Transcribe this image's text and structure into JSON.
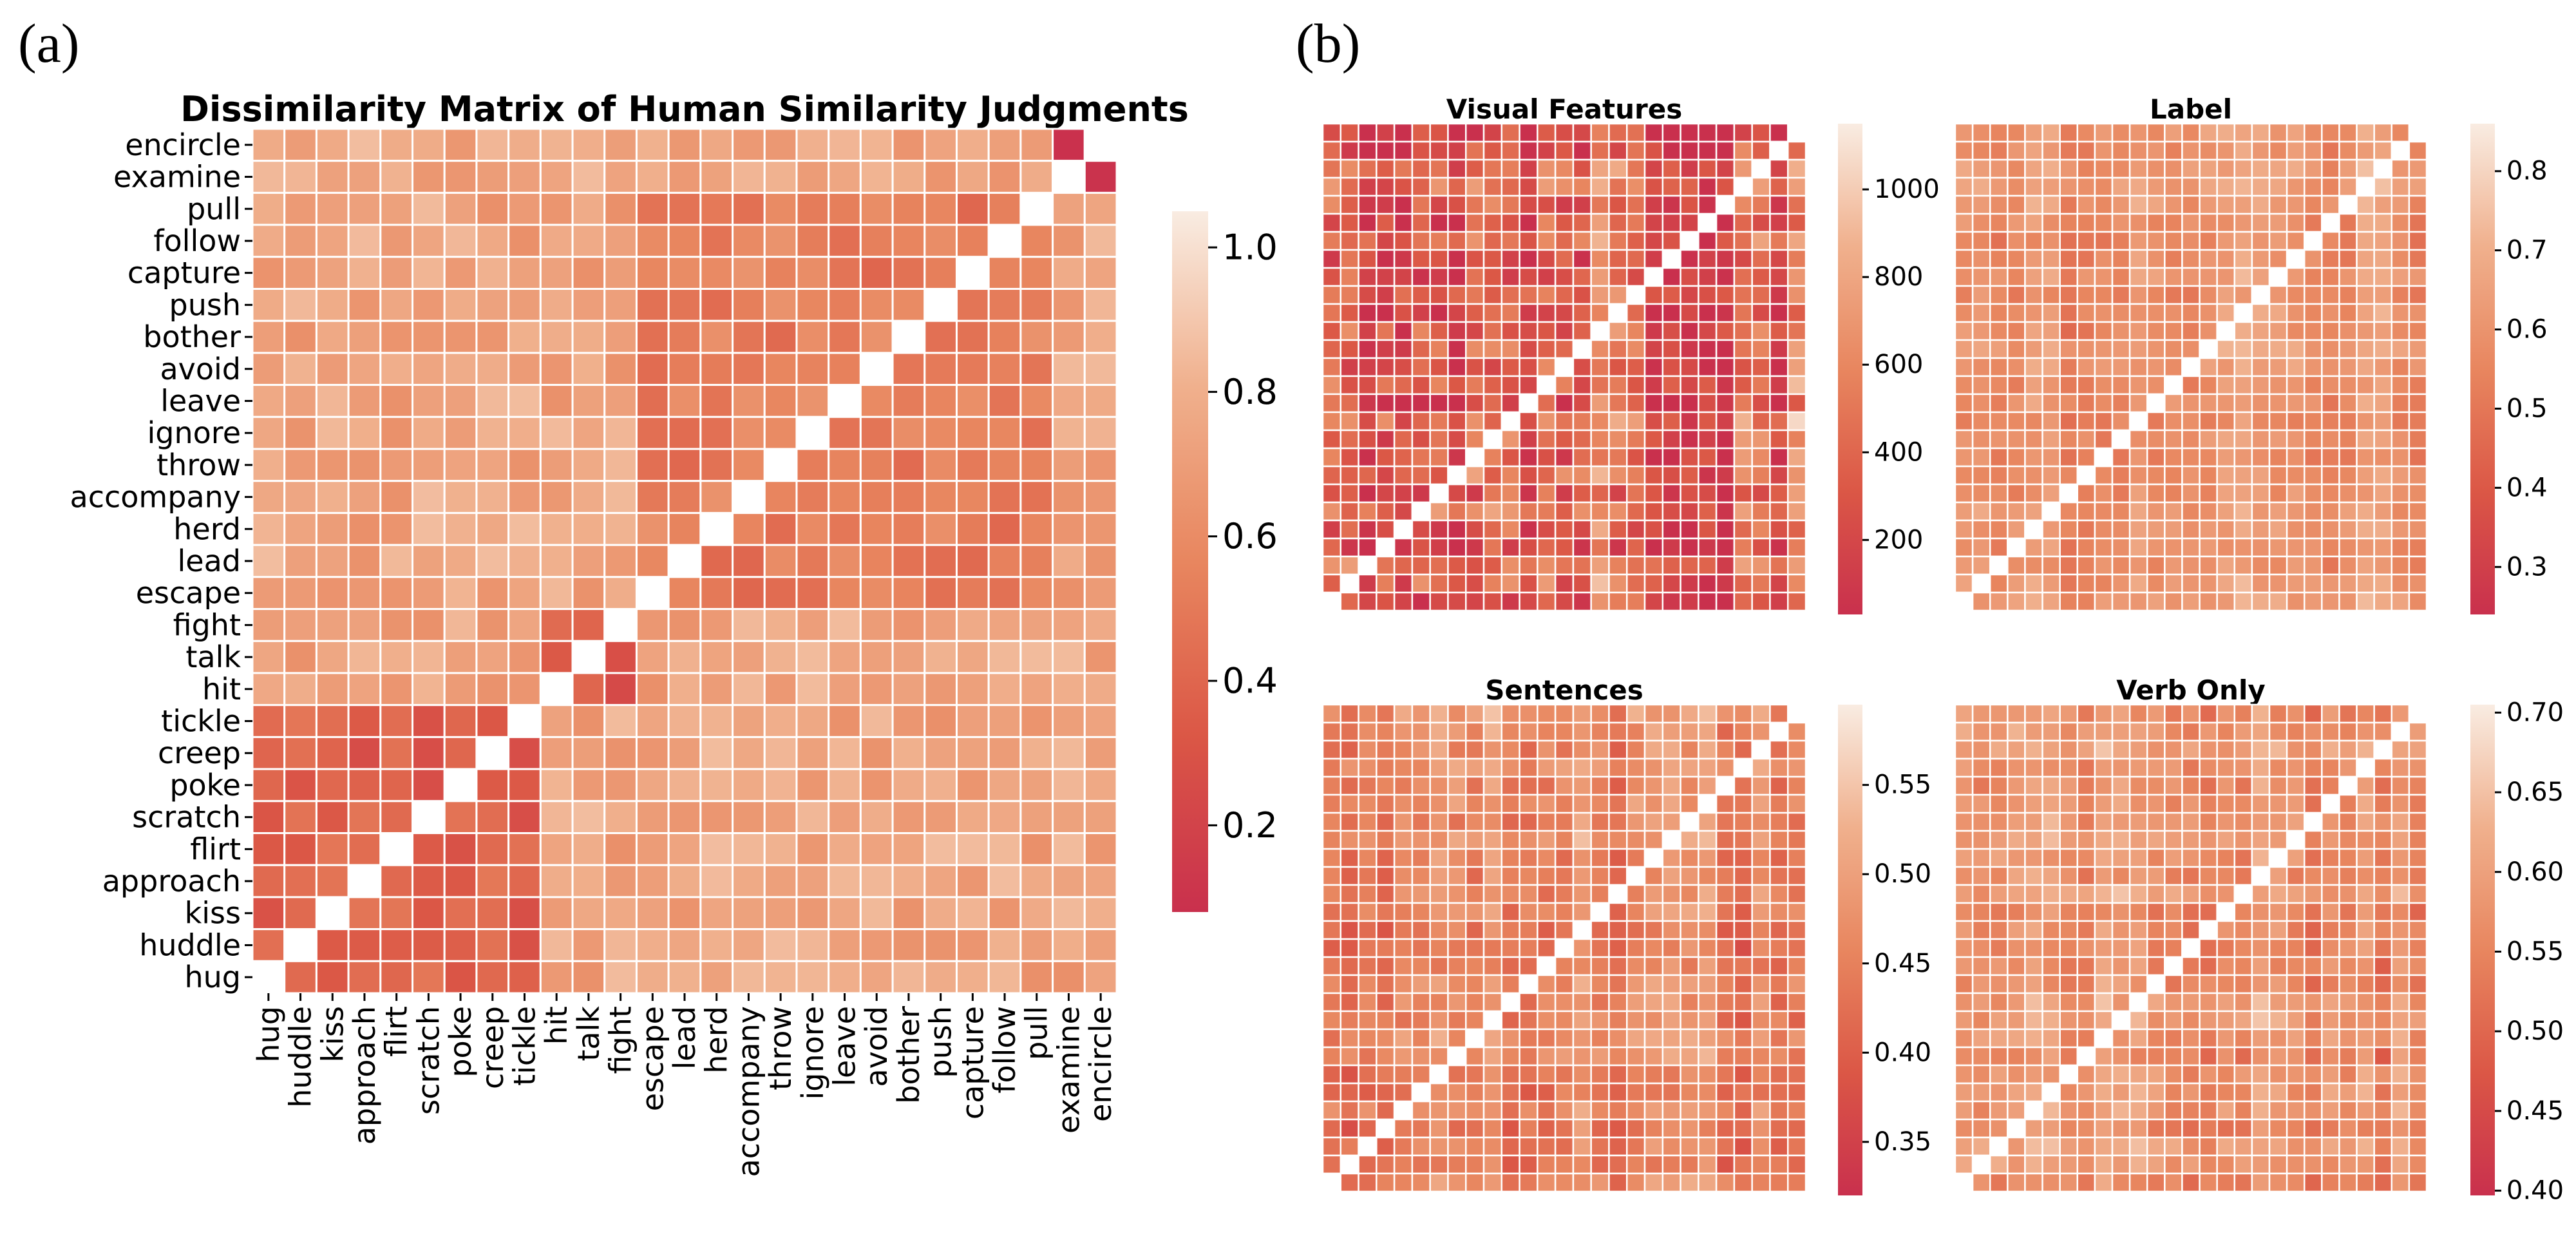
{
  "panels": {
    "a": "(a)",
    "b": "(b)"
  },
  "colors": {
    "low": "#c9304d",
    "mid1": "#db5746",
    "mid2": "#e8865f",
    "mid3": "#f0b08d",
    "high": "#f9ece2",
    "cell_border": "#ffffff"
  },
  "chart_data": [
    {
      "id": "main",
      "type": "heatmap",
      "title": "Dissimilarity Matrix of Human Similarity Judgments",
      "row_labels": [
        "encircle",
        "examine",
        "pull",
        "follow",
        "capture",
        "push",
        "bother",
        "avoid",
        "leave",
        "ignore",
        "throw",
        "accompany",
        "herd",
        "lead",
        "escape",
        "fight",
        "talk",
        "hit",
        "tickle",
        "creep",
        "poke",
        "scratch",
        "flirt",
        "approach",
        "kiss",
        "huddle",
        "hug"
      ],
      "col_labels": [
        "hug",
        "huddle",
        "kiss",
        "approach",
        "flirt",
        "scratch",
        "poke",
        "creep",
        "tickle",
        "hit",
        "talk",
        "fight",
        "escape",
        "lead",
        "herd",
        "accompany",
        "throw",
        "ignore",
        "leave",
        "avoid",
        "bother",
        "push",
        "capture",
        "follow",
        "pull",
        "examine",
        "encircle"
      ],
      "diagonal": "anti",
      "value_range": [
        0.08,
        1.05
      ],
      "colorbar_ticks": [
        0.2,
        0.4,
        0.6,
        0.8,
        1.0
      ],
      "colorbar_tick_labels": [
        "0.2",
        "0.4",
        "0.6",
        "0.8",
        "1.0"
      ],
      "clusters": [
        {
          "members": [
            "hug",
            "huddle",
            "kiss",
            "approach",
            "flirt",
            "scratch",
            "poke",
            "creep",
            "tickle"
          ],
          "value": 0.38
        },
        {
          "members": [
            "hit",
            "talk",
            "fight"
          ],
          "value": 0.32
        },
        {
          "members": [
            "escape",
            "lead",
            "herd",
            "accompany",
            "throw",
            "ignore",
            "leave",
            "avoid",
            "bother",
            "push",
            "capture",
            "follow",
            "pull"
          ],
          "value": 0.52
        },
        {
          "members": [
            "examine",
            "encircle"
          ],
          "value": 0.12
        }
      ],
      "between_value": 0.74,
      "noise": 0.12
    },
    {
      "id": "visual",
      "type": "heatmap",
      "title": "Visual Features",
      "n": 27,
      "diagonal": "anti",
      "value_range": [
        30,
        1150
      ],
      "colorbar_ticks": [
        200,
        400,
        600,
        800,
        1000
      ],
      "colorbar_tick_labels": [
        "200",
        "400",
        "600",
        "800",
        "1000"
      ],
      "typical_value": 420,
      "noise": 0.55
    },
    {
      "id": "label",
      "type": "heatmap",
      "title": "Label",
      "n": 27,
      "diagonal": "anti",
      "value_range": [
        0.24,
        0.86
      ],
      "colorbar_ticks": [
        0.3,
        0.4,
        0.5,
        0.6,
        0.7,
        0.8
      ],
      "colorbar_tick_labels": [
        "0.3",
        "0.4",
        "0.5",
        "0.6",
        "0.7",
        "0.8"
      ],
      "typical_value": 0.6,
      "noise": 0.22
    },
    {
      "id": "sentences",
      "type": "heatmap",
      "title": "Sentences",
      "n": 27,
      "diagonal": "anti",
      "value_range": [
        0.32,
        0.595
      ],
      "colorbar_ticks": [
        0.35,
        0.4,
        0.45,
        0.5,
        0.55
      ],
      "colorbar_tick_labels": [
        "0.35",
        "0.40",
        "0.45",
        "0.50",
        "0.55"
      ],
      "typical_value": 0.46,
      "noise": 0.3
    },
    {
      "id": "verb",
      "type": "heatmap",
      "title": "Verb Only",
      "n": 27,
      "diagonal": "anti",
      "value_range": [
        0.397,
        0.705
      ],
      "colorbar_ticks": [
        0.4,
        0.45,
        0.5,
        0.55,
        0.6,
        0.65,
        0.7
      ],
      "colorbar_tick_labels": [
        "0.40",
        "0.45",
        "0.50",
        "0.55",
        "0.60",
        "0.65",
        "0.70"
      ],
      "typical_value": 0.57,
      "noise": 0.28
    }
  ]
}
